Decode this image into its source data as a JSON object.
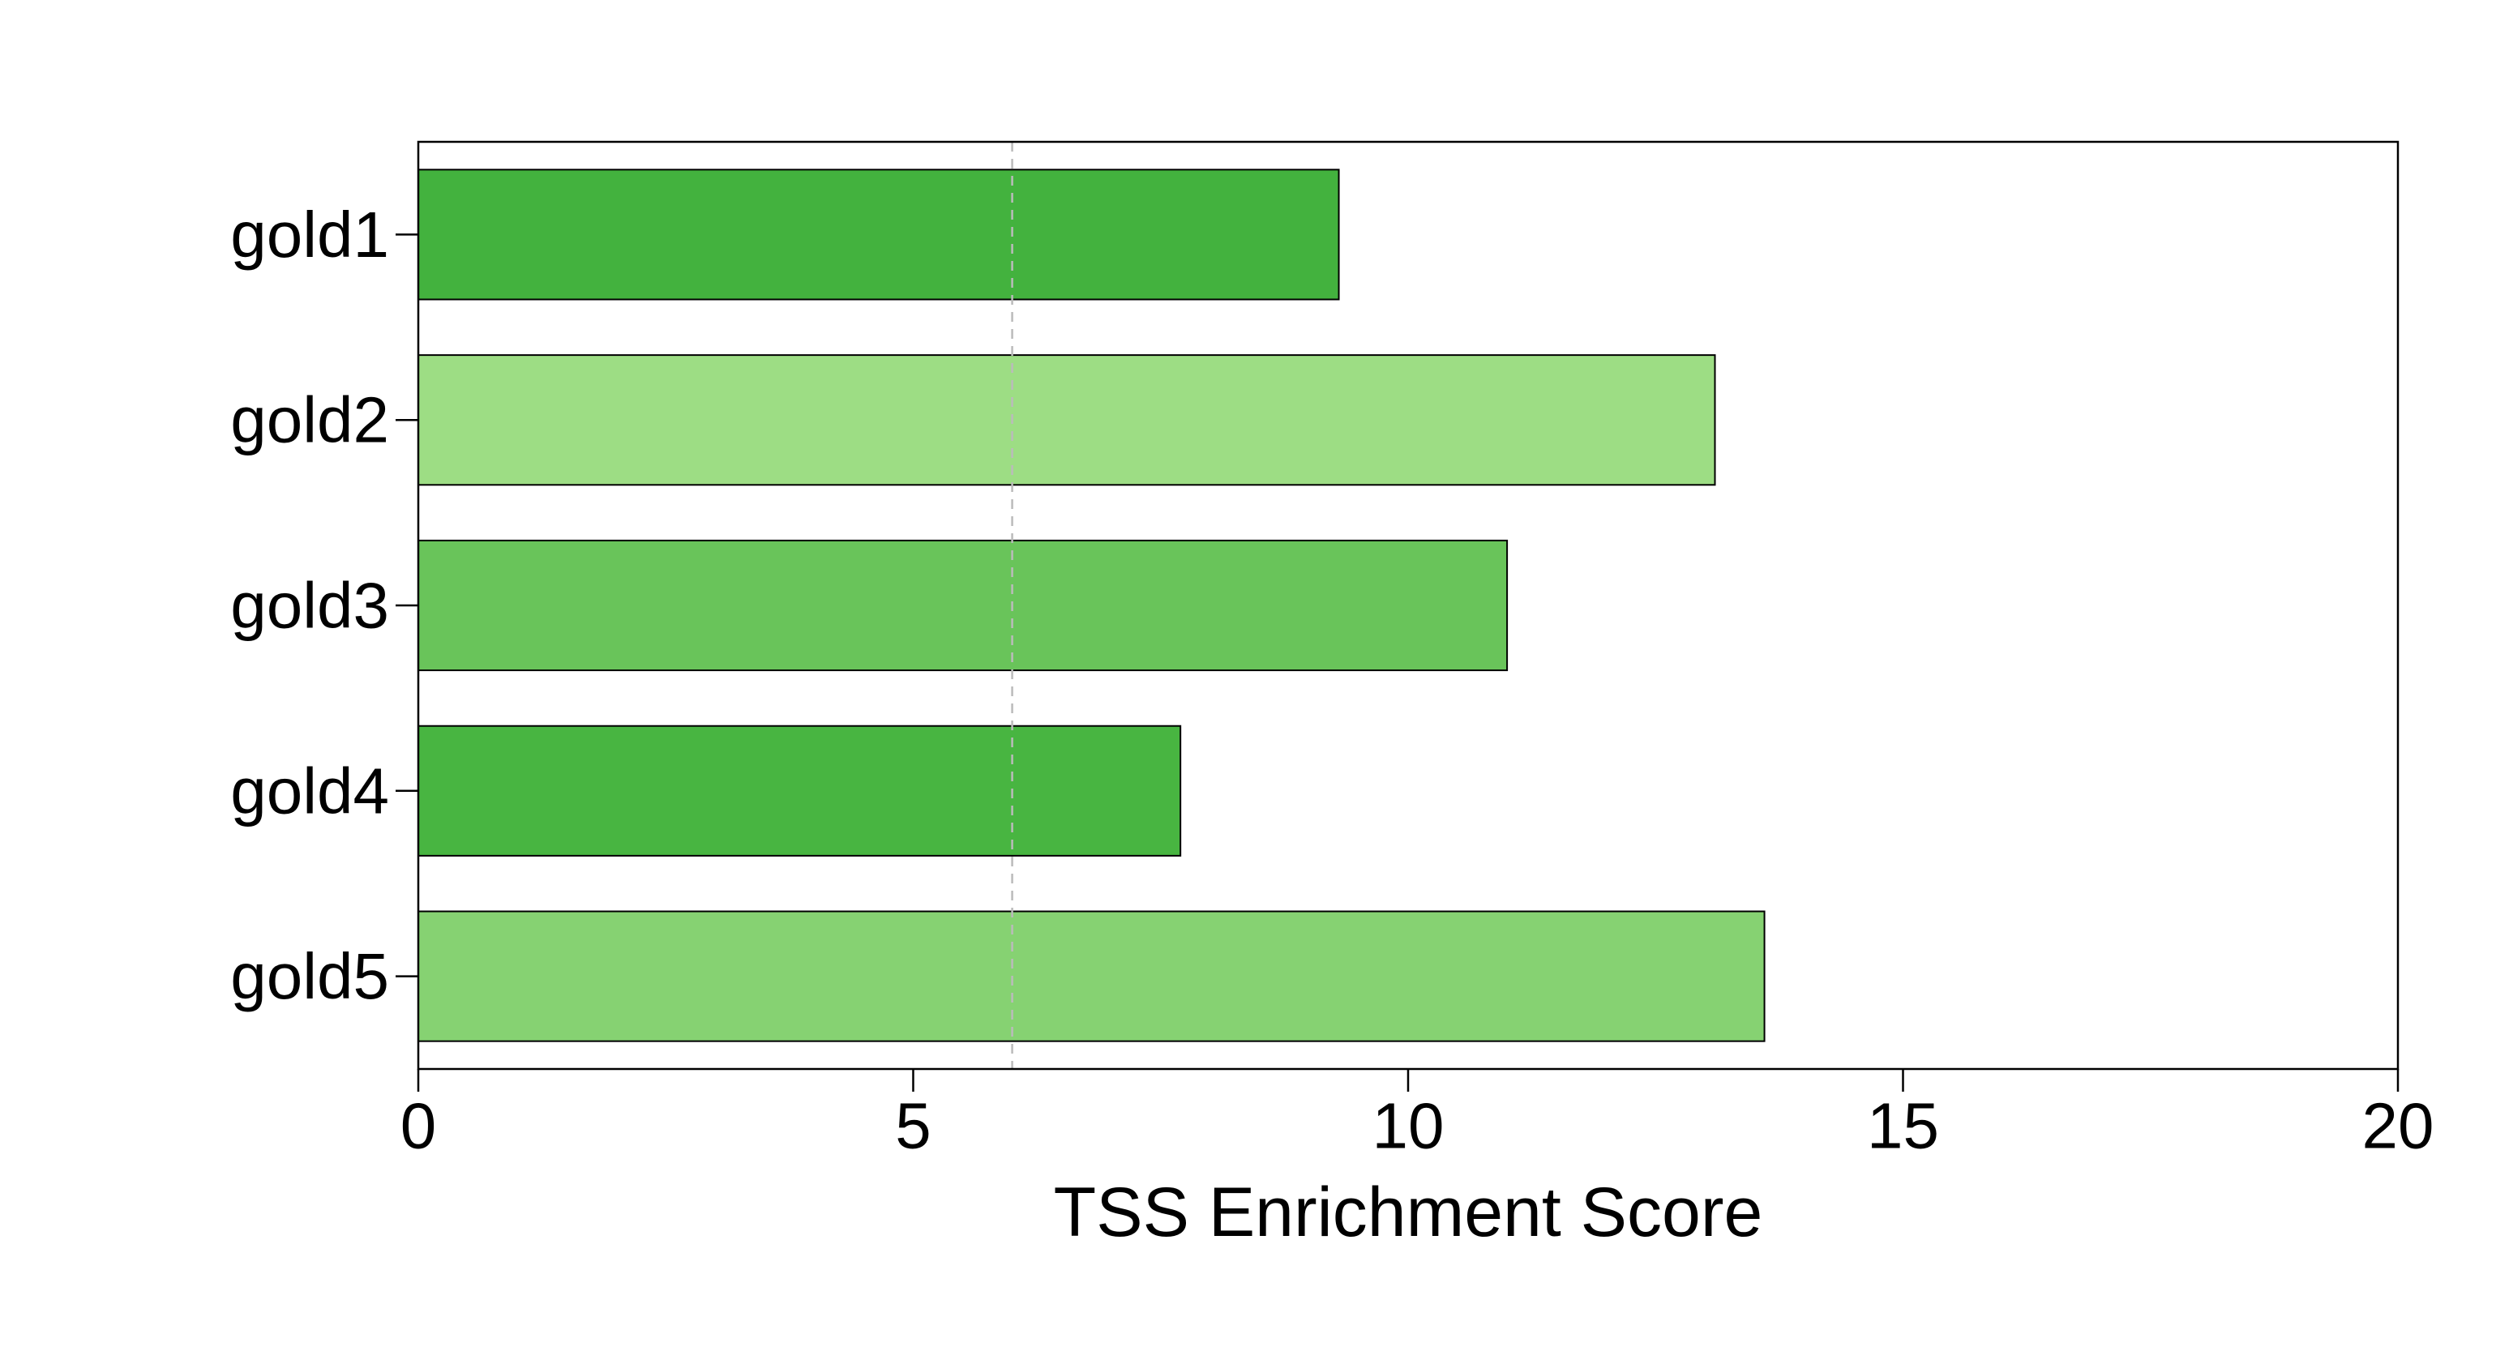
{
  "chart_data": {
    "type": "bar",
    "orientation": "horizontal",
    "categories": [
      "gold1",
      "gold2",
      "gold3",
      "gold4",
      "gold5"
    ],
    "values": [
      9.3,
      13.1,
      11.0,
      7.7,
      13.6
    ],
    "colors": [
      "#43b23e",
      "#9ddd84",
      "#69c45a",
      "#48b541",
      "#86d272"
    ],
    "title": "",
    "xlabel": "TSS Enrichment Score",
    "ylabel": "",
    "xlim": [
      0,
      20
    ],
    "xticks": [
      0,
      5,
      10,
      15,
      20
    ],
    "reference_line": {
      "x": 6,
      "style": "dashed",
      "color": "#bbbbbb"
    },
    "grid": false,
    "legend": "none"
  }
}
